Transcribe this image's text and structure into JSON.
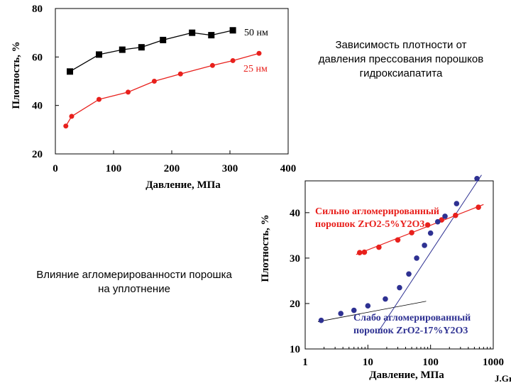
{
  "captions": {
    "top": "Зависимость плотности от давления прессования порошков гидроксиапатита",
    "bottom": "Влияние агломерированности порошка на уплотнение"
  },
  "credit": "J.Gr",
  "colors": {
    "black_series": "#000000",
    "red_series": "#e8201c",
    "blue_series": "#2e3192",
    "red_text": "#e8201c",
    "blue_text": "#2e3192"
  },
  "chart_data": [
    {
      "type": "scatter",
      "title": "",
      "xlabel": "Давление, МПа",
      "ylabel": "Плотность, %",
      "xlim": [
        0,
        400
      ],
      "ylim": [
        20,
        80
      ],
      "xticks": [
        "0",
        "100",
        "200",
        "300",
        "400"
      ],
      "yticks": [
        "20",
        "40",
        "60",
        "80"
      ],
      "grid": false,
      "series": [
        {
          "name": "50 нм",
          "marker": "square",
          "color": "#000000",
          "x": [
            25,
            75,
            115,
            148,
            185,
            235,
            268,
            305
          ],
          "y": [
            54,
            61,
            63,
            64,
            67,
            70,
            69,
            71
          ]
        },
        {
          "name": "25 нм",
          "marker": "circle",
          "color": "#e8201c",
          "x": [
            18,
            28,
            75,
            125,
            170,
            215,
            270,
            305,
            350
          ],
          "y": [
            31.5,
            35.5,
            42.5,
            45.5,
            50,
            53,
            56.5,
            58.5,
            61.5
          ]
        }
      ]
    },
    {
      "type": "scatter",
      "title": "",
      "xlabel": "Давление, МПа",
      "ylabel": "Плотность, %",
      "xscale": "log",
      "xlim": [
        1,
        1000
      ],
      "ylim": [
        10,
        47
      ],
      "xticks": [
        "1",
        "10",
        "100",
        "1000"
      ],
      "yticks": [
        "10",
        "20",
        "30",
        "40"
      ],
      "grid": false,
      "series": [
        {
          "name": "Сильно агломерированный порошок ZrO2-5%Y2O3",
          "marker": "circle",
          "color": "#e8201c",
          "x": [
            7.4,
            8.8,
            15,
            30,
            50,
            90,
            150,
            250,
            580
          ],
          "y": [
            31.2,
            31.3,
            32.4,
            34,
            35.6,
            37.3,
            38.4,
            39.4,
            41.2
          ]
        },
        {
          "name": "Слабо агломерированный порошок ZrO2-17%Y2O3",
          "marker": "circle",
          "color": "#2e3192",
          "x": [
            1.8,
            3.7,
            6,
            10,
            19,
            32,
            45,
            60,
            80,
            100,
            130,
            170,
            260,
            550
          ],
          "y": [
            16.3,
            17.8,
            18.5,
            19.5,
            21,
            23.5,
            26.5,
            30,
            32.8,
            35.5,
            38,
            39.2,
            42,
            47.5
          ]
        }
      ],
      "annotations": [
        {
          "text": "Сильно агломерированный",
          "color": "#e8201c"
        },
        {
          "text": "порошок ZrO2-5%Y2O3",
          "color": "#e8201c"
        },
        {
          "text": "Слабо агломерированный",
          "color": "#2e3192"
        },
        {
          "text": "порошок ZrO2-17%Y2O3",
          "color": "#2e3192"
        }
      ]
    }
  ]
}
